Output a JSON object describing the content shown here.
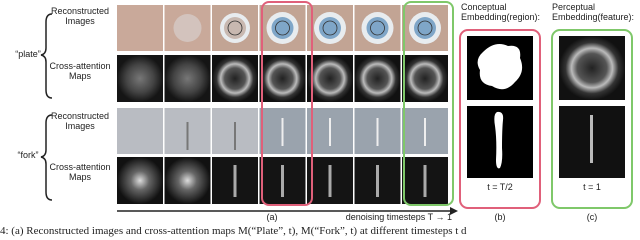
{
  "left_labels": {
    "plate_recon": [
      "Reconstructed",
      "Images"
    ],
    "plate_attn": [
      "Cross-attention",
      "Maps"
    ],
    "plate": "“plate”",
    "fork_recon": [
      "Reconstructed",
      "Images"
    ],
    "fork_attn": [
      "Cross-attention",
      "Maps"
    ],
    "fork": "“fork”"
  },
  "panel_a": {
    "label": "(a)",
    "axis": "denoising timesteps T → 1"
  },
  "panel_b": {
    "title": [
      "Conceptual",
      "Embedding(region):"
    ],
    "time": "t = T/2",
    "label": "(b)"
  },
  "panel_c": {
    "title": [
      "Perceptual",
      "Embedding(feature):"
    ],
    "time": "t = 1",
    "label": "(c)"
  },
  "caption": "4: (a) Reconstructed images and cross-attention maps M(“Plate”, t), M(“Fork”, t) at different timesteps t d"
}
